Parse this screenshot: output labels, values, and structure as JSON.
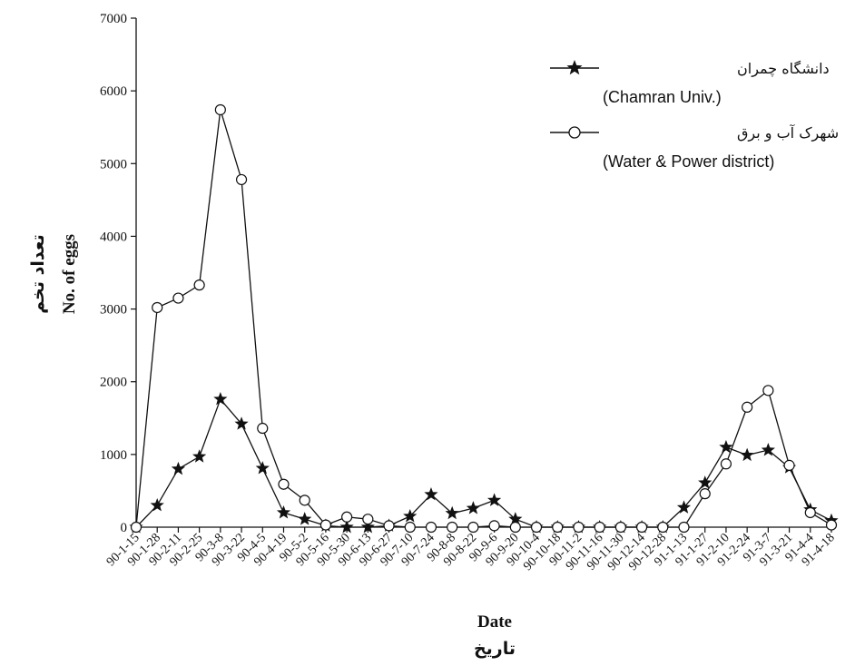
{
  "chart_data": {
    "type": "line",
    "xlabel": "Date",
    "xlabel_fa": "تاریخ",
    "ylabel": "No. of eggs",
    "ylabel_fa": "تعداد تخم",
    "ylim": [
      0,
      7000
    ],
    "yticks": [
      "0",
      "1000",
      "2000",
      "3000",
      "4000",
      "5000",
      "6000",
      "7000"
    ],
    "grid": false,
    "legend_position": "top-right",
    "categories": [
      "90-1-15",
      "90-1-28",
      "90-2-11",
      "90-2-25",
      "90-3-8",
      "90-3-22",
      "90-4-5",
      "90-4-19",
      "90-5-2",
      "90-5-16",
      "90-5-30",
      "90-6-13",
      "90-6-27",
      "90-7-10",
      "90-7-24",
      "90-8-8",
      "90-8-22",
      "90-9-6",
      "90-9-20",
      "90-10-4",
      "90-10-18",
      "90-11-2",
      "90-11-16",
      "90-11-30",
      "90-12-14",
      "90-12-28",
      "91-1-13",
      "91-1-27",
      "91-2-10",
      "91-2-24",
      "91-3-7",
      "91-3-21",
      "91-4-4",
      "91-4-18"
    ],
    "series": [
      {
        "name": "دانشگاه چمران",
        "name_en": "(Chamran Univ.)",
        "marker": "star",
        "values": [
          0,
          300,
          800,
          970,
          1760,
          1420,
          810,
          200,
          110,
          20,
          0,
          0,
          20,
          150,
          450,
          190,
          260,
          370,
          110,
          0,
          0,
          0,
          0,
          0,
          0,
          0,
          270,
          610,
          1100,
          990,
          1060,
          820,
          240,
          90
        ]
      },
      {
        "name": "شهرک آب و برق",
        "name_en": "(Water & Power district)",
        "marker": "circle",
        "values": [
          0,
          3020,
          3150,
          3330,
          5740,
          4780,
          1360,
          590,
          370,
          30,
          140,
          110,
          20,
          0,
          0,
          0,
          0,
          20,
          0,
          0,
          0,
          0,
          0,
          0,
          0,
          0,
          0,
          460,
          870,
          1650,
          1880,
          850,
          200,
          30
        ]
      }
    ]
  }
}
